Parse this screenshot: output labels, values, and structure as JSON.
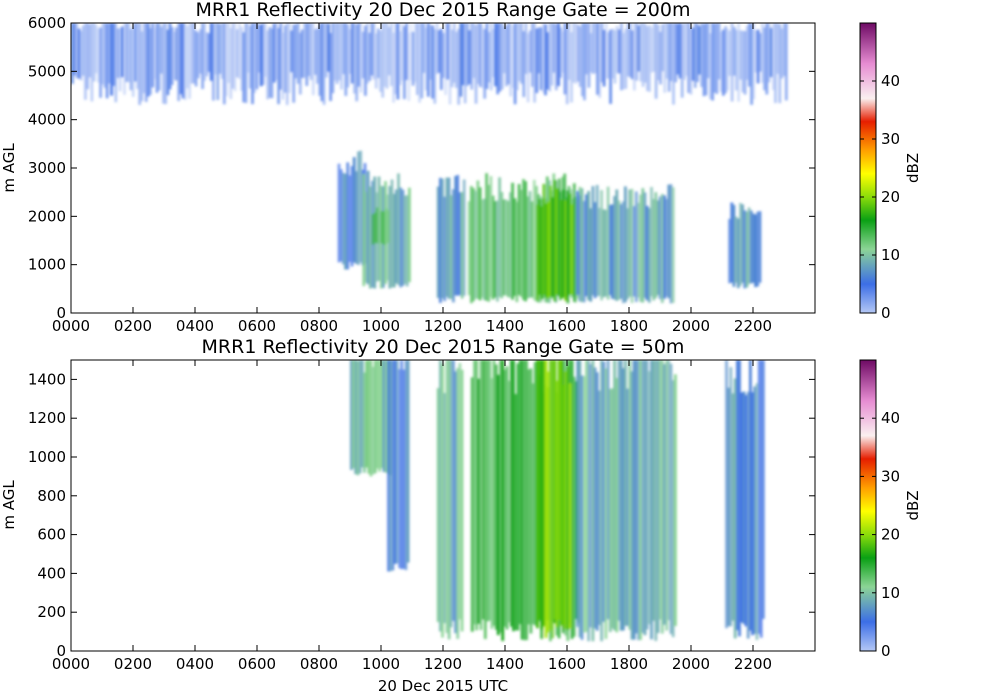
{
  "chart_data": [
    {
      "type": "heatmap",
      "title": "MRR1 Reflectivity 20 Dec 2015 Range Gate = 200m",
      "xlabel": "",
      "ylabel": "m AGL",
      "xlim": [
        0,
        24
      ],
      "ylim": [
        0,
        6000
      ],
      "xticks": [
        "0000",
        "0200",
        "0400",
        "0600",
        "0800",
        "1000",
        "1200",
        "1400",
        "1600",
        "1800",
        "2000",
        "2200"
      ],
      "yticks": [
        "0",
        "1000",
        "2000",
        "3000",
        "4000",
        "5000",
        "6000"
      ],
      "colorbar": {
        "label": "dBZ",
        "range": [
          0,
          50
        ],
        "ticks": [
          "0",
          "10",
          "20",
          "30",
          "40"
        ]
      },
      "features": [
        {
          "desc": "noise band",
          "t0": 0.0,
          "t1": 23.1,
          "z0": 4300,
          "z1": 6000,
          "dbz": 3
        },
        {
          "desc": "echo",
          "t0": 8.6,
          "t1": 9.5,
          "z0": 900,
          "z1": 3100,
          "dbz": 6
        },
        {
          "desc": "echo",
          "t0": 9.4,
          "t1": 10.9,
          "z0": 500,
          "z1": 2700,
          "dbz": 9
        },
        {
          "desc": "echo core",
          "t0": 9.7,
          "t1": 10.2,
          "z0": 1400,
          "z1": 2100,
          "dbz": 13
        },
        {
          "desc": "echo",
          "t0": 11.8,
          "t1": 12.7,
          "z0": 200,
          "z1": 2600,
          "dbz": 8
        },
        {
          "desc": "echo",
          "t0": 12.8,
          "t1": 16.4,
          "z0": 200,
          "z1": 2600,
          "dbz": 12
        },
        {
          "desc": "echo core",
          "t0": 15.0,
          "t1": 16.2,
          "z0": 200,
          "z1": 2500,
          "dbz": 18
        },
        {
          "desc": "echo",
          "t0": 16.3,
          "t1": 19.4,
          "z0": 200,
          "z1": 2400,
          "dbz": 8
        },
        {
          "desc": "echo",
          "t0": 21.2,
          "t1": 22.2,
          "z0": 500,
          "z1": 2100,
          "dbz": 8
        }
      ]
    },
    {
      "type": "heatmap",
      "title": "MRR1 Reflectivity 20 Dec 2015 Range Gate = 50m",
      "xlabel": "20 Dec 2015 UTC",
      "ylabel": "m AGL",
      "xlim": [
        0,
        24
      ],
      "ylim": [
        0,
        1500
      ],
      "xticks": [
        "0000",
        "0200",
        "0400",
        "0600",
        "0800",
        "1000",
        "1200",
        "1400",
        "1600",
        "1800",
        "2000",
        "2200"
      ],
      "yticks": [
        "0",
        "200",
        "400",
        "600",
        "800",
        "1000",
        "1200",
        "1400"
      ],
      "colorbar": {
        "label": "dBZ",
        "range": [
          0,
          50
        ],
        "ticks": [
          "0",
          "10",
          "20",
          "30",
          "40"
        ]
      },
      "features": [
        {
          "desc": "echo",
          "t0": 9.0,
          "t1": 10.3,
          "z0": 900,
          "z1": 1500,
          "dbz": 10
        },
        {
          "desc": "echo",
          "t0": 10.2,
          "t1": 10.9,
          "z0": 400,
          "z1": 1500,
          "dbz": 6
        },
        {
          "desc": "echo",
          "t0": 11.8,
          "t1": 12.6,
          "z0": 50,
          "z1": 1500,
          "dbz": 9
        },
        {
          "desc": "echo",
          "t0": 12.9,
          "t1": 16.4,
          "z0": 50,
          "z1": 1500,
          "dbz": 14
        },
        {
          "desc": "echo core",
          "t0": 15.0,
          "t1": 16.1,
          "z0": 50,
          "z1": 1500,
          "dbz": 19
        },
        {
          "desc": "echo",
          "t0": 16.3,
          "t1": 19.5,
          "z0": 50,
          "z1": 1500,
          "dbz": 9
        },
        {
          "desc": "echo",
          "t0": 21.1,
          "t1": 22.3,
          "z0": 50,
          "z1": 1500,
          "dbz": 7
        }
      ]
    }
  ]
}
